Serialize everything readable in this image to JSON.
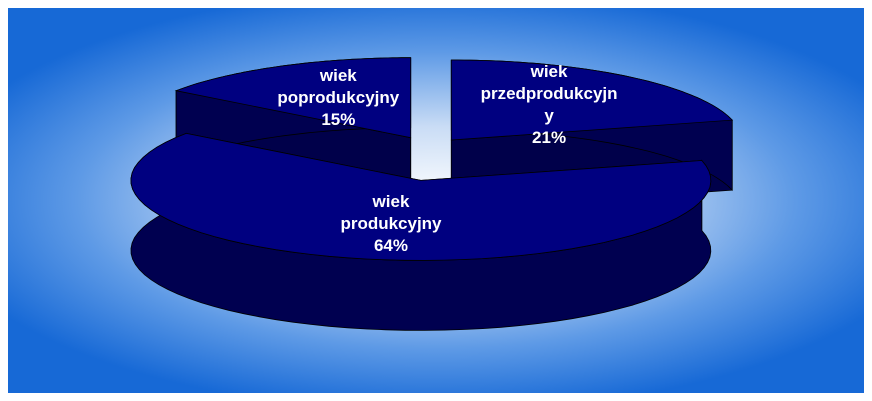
{
  "chart_data": {
    "type": "pie3d",
    "categories": [
      "wiek przedprodukcyjny",
      "wiek produkcyjny",
      "wiek poprodukcyjny"
    ],
    "values": [
      21,
      64,
      15
    ],
    "value_labels": [
      "21%",
      "64%",
      "15%"
    ],
    "color": "#000080"
  }
}
